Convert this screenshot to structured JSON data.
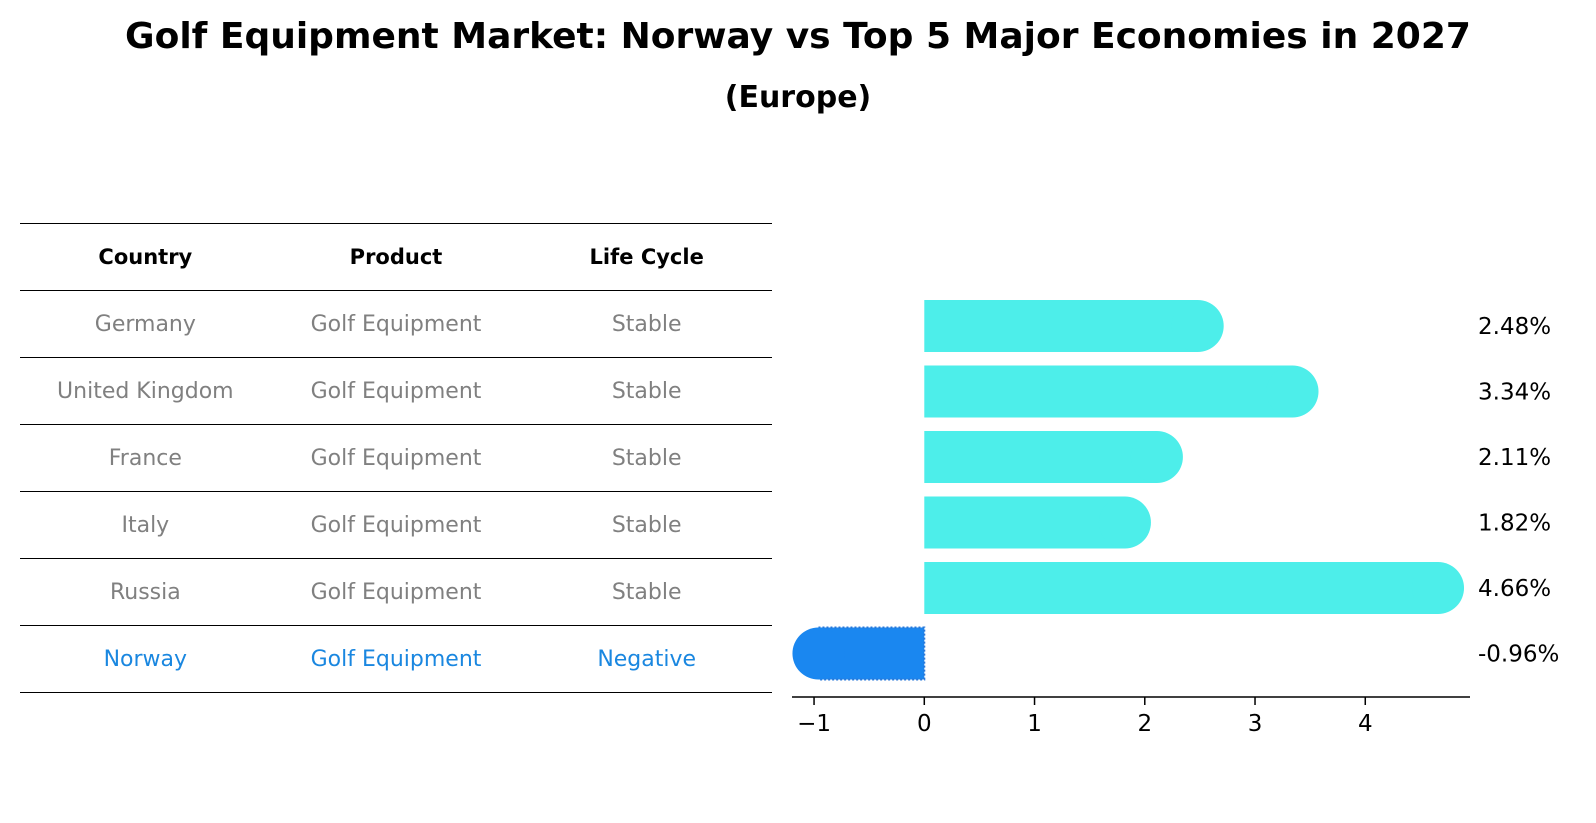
{
  "title": "Golf Equipment Market: Norway vs Top 5 Major Economies in 2027",
  "subtitle": "(Europe)",
  "table": {
    "headers": [
      "Country",
      "Product",
      "Life Cycle"
    ],
    "rows": [
      {
        "country": "Germany",
        "product": "Golf Equipment",
        "life_cycle": "Stable"
      },
      {
        "country": "United Kingdom",
        "product": "Golf Equipment",
        "life_cycle": "Stable"
      },
      {
        "country": "France",
        "product": "Golf Equipment",
        "life_cycle": "Stable"
      },
      {
        "country": "Italy",
        "product": "Golf Equipment",
        "life_cycle": "Stable"
      },
      {
        "country": "Russia",
        "product": "Golf Equipment",
        "life_cycle": "Stable"
      },
      {
        "country": "Norway",
        "product": "Golf Equipment",
        "life_cycle": "Negative"
      }
    ]
  },
  "colors": {
    "bar_positive": "#4deeea",
    "bar_highlight": "#1a87f0",
    "text_muted": "#808080",
    "text_highlight": "#1a87e0"
  },
  "chart_data": {
    "type": "bar",
    "orientation": "horizontal",
    "categories": [
      "Germany",
      "United Kingdom",
      "France",
      "Italy",
      "Russia",
      "Norway"
    ],
    "values": [
      2.48,
      3.34,
      2.11,
      1.82,
      4.66,
      -0.96
    ],
    "value_labels": [
      "2.48%",
      "3.34%",
      "2.11%",
      "1.82%",
      "4.66%",
      "-0.96%"
    ],
    "highlight": "Norway",
    "xlim": [
      -1.2,
      4.95
    ],
    "xticks": [
      -1,
      0,
      1,
      2,
      3,
      4
    ],
    "xtick_labels": [
      "−1",
      "0",
      "1",
      "2",
      "3",
      "4"
    ],
    "grid": false
  }
}
